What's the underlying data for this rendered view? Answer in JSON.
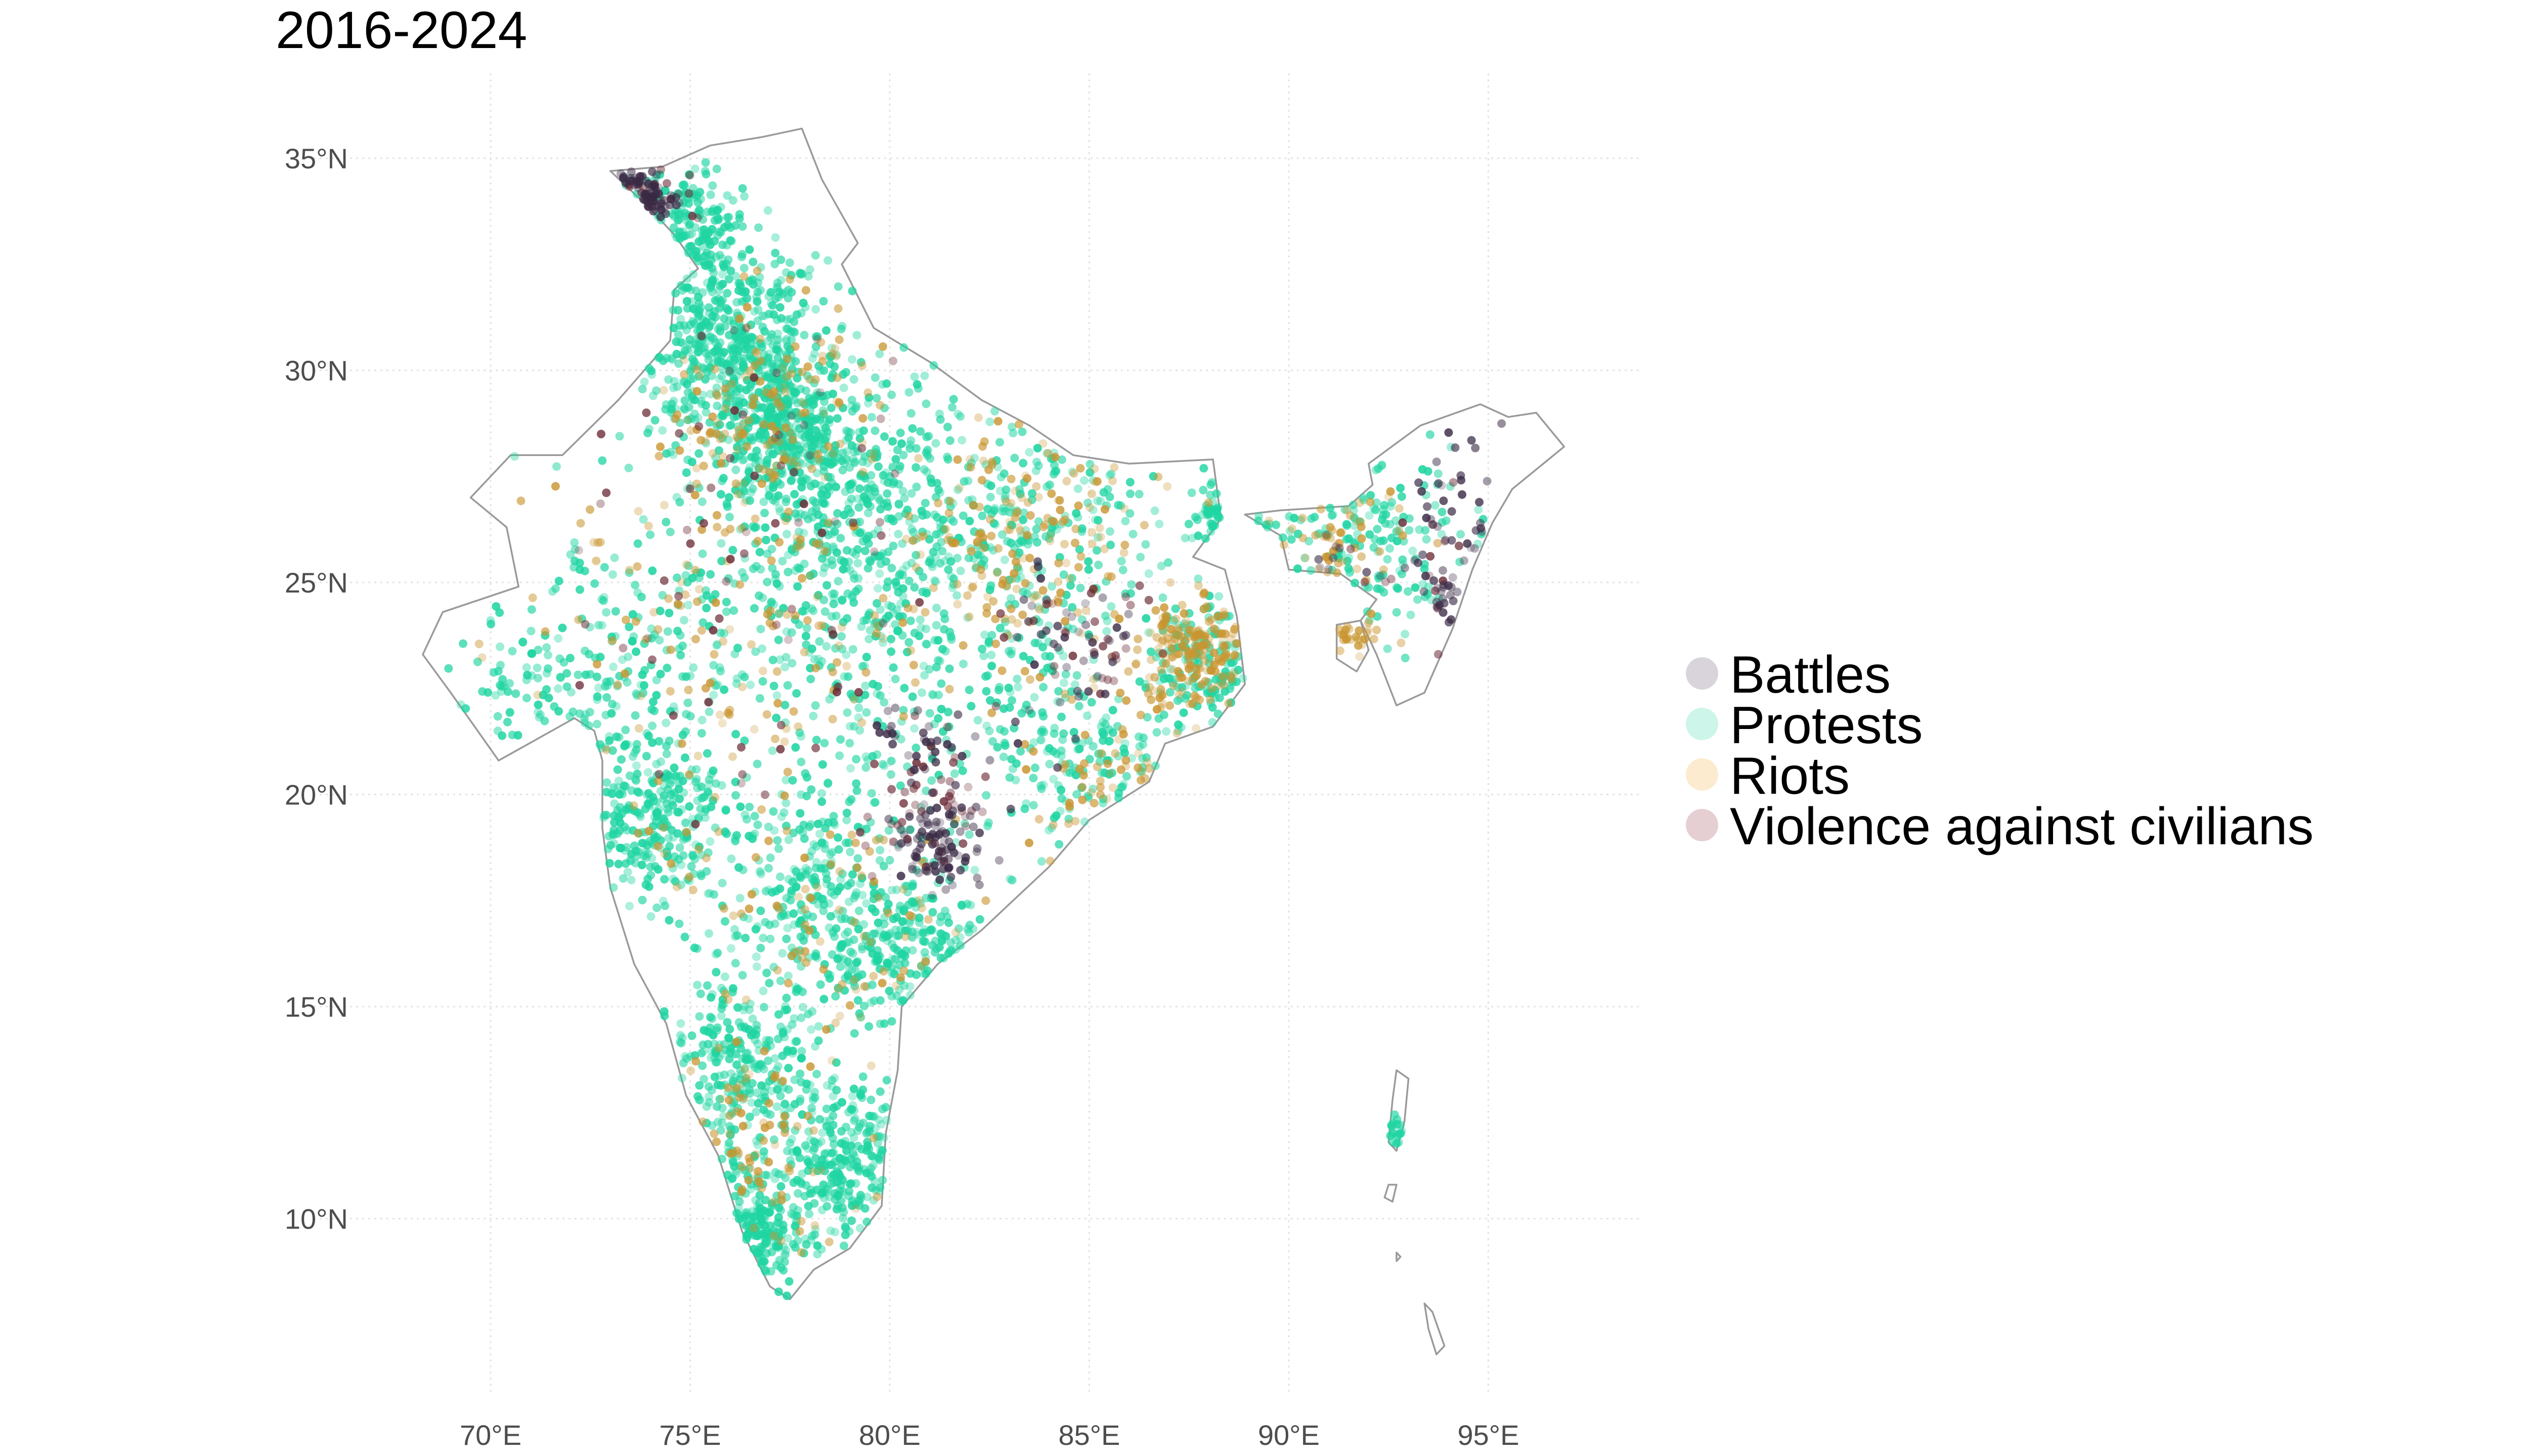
{
  "title": "2016-2024",
  "chart_data": {
    "type": "scatter",
    "projection": "equirectangular",
    "xlabel": "",
    "ylabel": "",
    "xlim": [
      67.5,
      98
    ],
    "ylim": [
      6.5,
      36.5
    ],
    "grid": true,
    "x_ticks": [
      70,
      75,
      80,
      85,
      90,
      95
    ],
    "x_tick_labels": [
      "70°E",
      "75°E",
      "80°E",
      "85°E",
      "90°E",
      "95°E"
    ],
    "y_ticks": [
      10,
      15,
      20,
      25,
      30,
      35
    ],
    "y_tick_labels": [
      "10°N",
      "15°N",
      "20°N",
      "25°N",
      "30°N",
      "35°N"
    ],
    "legend_position": "right",
    "series": [
      {
        "name": "Battles",
        "color": "#3a2a45",
        "legend_color": "#d9d4dc",
        "clusters": [
          {
            "lon": 73.9,
            "lat": 34.1,
            "spread": 0.35,
            "n": 70
          },
          {
            "lon": 81.2,
            "lat": 18.8,
            "spread": 0.6,
            "n": 90
          },
          {
            "lon": 80.6,
            "lat": 21.3,
            "spread": 0.5,
            "n": 25
          },
          {
            "lon": 84.6,
            "lat": 23.6,
            "spread": 0.8,
            "n": 40
          },
          {
            "lon": 94.6,
            "lat": 26.3,
            "spread": 0.9,
            "n": 40
          },
          {
            "lon": 93.9,
            "lat": 24.6,
            "spread": 0.35,
            "n": 20
          },
          {
            "lon": 91.4,
            "lat": 25.6,
            "spread": 0.6,
            "n": 8
          },
          {
            "lon": 82.6,
            "lat": 20.6,
            "spread": 0.8,
            "n": 12
          }
        ]
      },
      {
        "name": "Protests",
        "color": "#1fd5a2",
        "legend_color": "#cdf5ea",
        "clusters": [
          {
            "lon": 76.0,
            "lat": 30.5,
            "spread": 1.2,
            "n": 520
          },
          {
            "lon": 74.8,
            "lat": 33.4,
            "spread": 0.7,
            "n": 150
          },
          {
            "lon": 77.3,
            "lat": 28.6,
            "spread": 0.7,
            "n": 260
          },
          {
            "lon": 78.3,
            "lat": 27.3,
            "spread": 1.4,
            "n": 280
          },
          {
            "lon": 80.5,
            "lat": 26.5,
            "spread": 1.8,
            "n": 280
          },
          {
            "lon": 84.0,
            "lat": 26.0,
            "spread": 1.5,
            "n": 180
          },
          {
            "lon": 87.8,
            "lat": 23.0,
            "spread": 0.7,
            "n": 150
          },
          {
            "lon": 85.0,
            "lat": 20.8,
            "spread": 1.0,
            "n": 120
          },
          {
            "lon": 76.0,
            "lat": 24.0,
            "spread": 2.5,
            "n": 260
          },
          {
            "lon": 72.8,
            "lat": 22.5,
            "spread": 1.1,
            "n": 110
          },
          {
            "lon": 70.8,
            "lat": 22.5,
            "spread": 0.8,
            "n": 50
          },
          {
            "lon": 74.0,
            "lat": 19.2,
            "spread": 1.0,
            "n": 260
          },
          {
            "lon": 78.4,
            "lat": 17.5,
            "spread": 1.3,
            "n": 340
          },
          {
            "lon": 80.8,
            "lat": 16.2,
            "spread": 0.9,
            "n": 140
          },
          {
            "lon": 76.2,
            "lat": 13.5,
            "spread": 1.1,
            "n": 260
          },
          {
            "lon": 79.0,
            "lat": 11.3,
            "spread": 1.0,
            "n": 260
          },
          {
            "lon": 76.4,
            "lat": 9.8,
            "spread": 0.7,
            "n": 180
          },
          {
            "lon": 91.8,
            "lat": 26.2,
            "spread": 1.3,
            "n": 150
          },
          {
            "lon": 88.5,
            "lat": 26.5,
            "spread": 0.4,
            "n": 50
          },
          {
            "lon": 92.7,
            "lat": 12.0,
            "spread": 0.3,
            "n": 18
          },
          {
            "lon": 82.5,
            "lat": 21.8,
            "spread": 1.6,
            "n": 110
          },
          {
            "lon": 79.3,
            "lat": 23.0,
            "spread": 1.6,
            "n": 110
          }
        ]
      },
      {
        "name": "Riots",
        "color": "#c99530",
        "legend_color": "#fdebd0",
        "clusters": [
          {
            "lon": 77.0,
            "lat": 29.0,
            "spread": 1.3,
            "n": 130
          },
          {
            "lon": 83.5,
            "lat": 26.0,
            "spread": 1.5,
            "n": 170
          },
          {
            "lon": 87.6,
            "lat": 23.3,
            "spread": 0.7,
            "n": 170
          },
          {
            "lon": 76.0,
            "lat": 24.0,
            "spread": 2.6,
            "n": 160
          },
          {
            "lon": 79.0,
            "lat": 17.0,
            "spread": 2.0,
            "n": 90
          },
          {
            "lon": 76.4,
            "lat": 11.5,
            "spread": 1.2,
            "n": 70
          },
          {
            "lon": 91.0,
            "lat": 26.0,
            "spread": 1.0,
            "n": 50
          },
          {
            "lon": 85.5,
            "lat": 20.5,
            "spread": 1.0,
            "n": 50
          },
          {
            "lon": 91.7,
            "lat": 23.8,
            "spread": 0.3,
            "n": 25
          }
        ]
      },
      {
        "name": "Violence against civilians",
        "color": "#6b2a35",
        "legend_color": "#e5cfd3",
        "clusters": [
          {
            "lon": 81.0,
            "lat": 19.5,
            "spread": 0.8,
            "n": 45
          },
          {
            "lon": 84.8,
            "lat": 23.8,
            "spread": 1.0,
            "n": 30
          },
          {
            "lon": 77.0,
            "lat": 28.0,
            "spread": 1.6,
            "n": 40
          },
          {
            "lon": 74.0,
            "lat": 34.0,
            "spread": 0.5,
            "n": 20
          },
          {
            "lon": 76.0,
            "lat": 23.0,
            "spread": 2.5,
            "n": 40
          },
          {
            "lon": 93.6,
            "lat": 25.5,
            "spread": 1.0,
            "n": 15
          }
        ]
      }
    ]
  }
}
